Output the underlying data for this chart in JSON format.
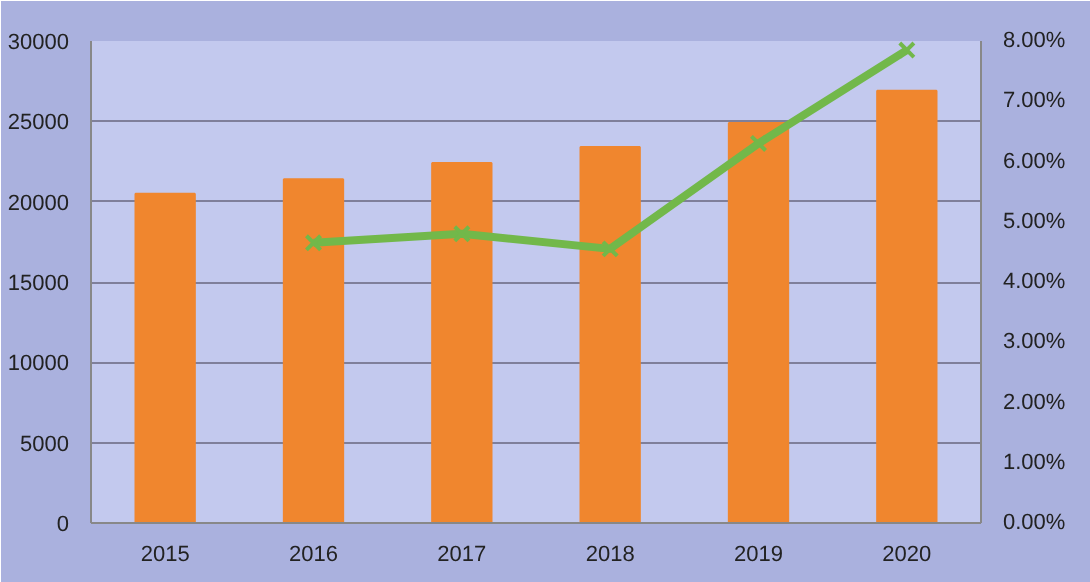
{
  "chart_data": {
    "type": "bar",
    "categories": [
      "2015",
      "2016",
      "2017",
      "2018",
      "2019",
      "2020"
    ],
    "series": [
      {
        "color": "#f0862e",
        "values": [
          20500,
          21400,
          22400,
          23400,
          24900,
          26900
        ]
      },
      {
        "type": "line",
        "axis": "y2",
        "color": "#72b84a",
        "marker": "cross",
        "values": [
          null,
          4.65,
          4.8,
          4.55,
          6.3,
          7.85
        ]
      }
    ],
    "ylim": [
      0,
      30000
    ],
    "yticks": [
      0,
      5000,
      10000,
      15000,
      20000,
      25000,
      30000
    ],
    "y2lim": [
      0,
      8
    ],
    "y2ticks": [
      {
        "value": 0,
        "label": "0.00%"
      },
      {
        "value": 1,
        "label": "1.00%"
      },
      {
        "value": 2,
        "label": "2.00%"
      },
      {
        "value": 3,
        "label": "3.00%"
      },
      {
        "value": 4,
        "label": "4.00%"
      },
      {
        "value": 5,
        "label": "5.00%"
      },
      {
        "value": 6,
        "label": "6.00%"
      },
      {
        "value": 7,
        "label": "7.00%"
      },
      {
        "value": 8,
        "label": "8.00%"
      }
    ],
    "grid": "y"
  }
}
